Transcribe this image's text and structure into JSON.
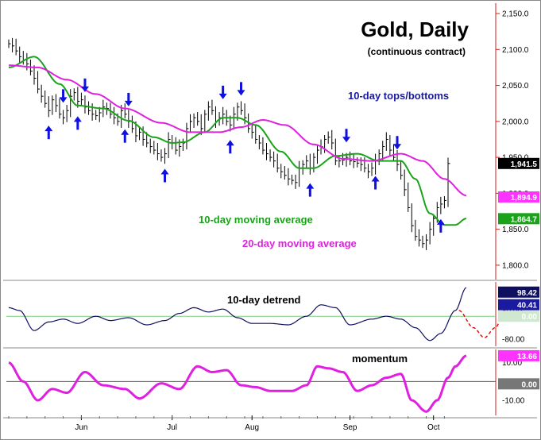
{
  "chart_data": [
    {
      "type": "line",
      "panel": "price",
      "title": "Gold, Daily",
      "subtitle": "(continuous contract)",
      "annotations": {
        "tops_bottoms": "10-day tops/bottoms",
        "ma10": "10-day moving average",
        "ma20": "20-day moving average"
      },
      "x_ticks": [
        "Jun",
        "Jul",
        "Aug",
        "Sep",
        "Oct"
      ],
      "x_tick_index": [
        20,
        45,
        67,
        94,
        117
      ],
      "y_ticks": [
        "2,150.0",
        "2,100.0",
        "2,050.0",
        "2,000.0",
        "1,950.0",
        "1,900.0",
        "1,850.0",
        "1,800.0"
      ],
      "y_tick_values": [
        2150,
        2100,
        2050,
        2000,
        1950,
        1900,
        1850,
        1800
      ],
      "ylim": [
        1780,
        2160
      ],
      "last_price": "1,941.5",
      "last_price_value": 1941.5,
      "ma20_label": "1,894.9",
      "ma20_value": 1894.9,
      "ma10_label": "1,864.7",
      "ma10_value": 1864.7,
      "closes": [
        2108,
        2105,
        2098,
        2090,
        2085,
        2080,
        2070,
        2060,
        2045,
        2035,
        2025,
        2015,
        2030,
        2022,
        2010,
        2005,
        2015,
        2035,
        2040,
        2028,
        2030,
        2020,
        2015,
        2010,
        2008,
        2012,
        2020,
        2018,
        2010,
        2005,
        2000,
        2015,
        2010,
        2000,
        1990,
        1980,
        1985,
        1975,
        1970,
        1965,
        1960,
        1955,
        1950,
        1955,
        1975,
        1970,
        1960,
        1965,
        1970,
        1990,
        2000,
        2005,
        2000,
        1990,
        2010,
        2020,
        2015,
        2000,
        2005,
        2010,
        2000,
        1995,
        2010,
        2020,
        2015,
        2005,
        1990,
        1985,
        1975,
        1970,
        1960,
        1955,
        1950,
        1945,
        1935,
        1930,
        1925,
        1920,
        1918,
        1915,
        1935,
        1940,
        1945,
        1935,
        1950,
        1960,
        1965,
        1975,
        1978,
        1970,
        1945,
        1945,
        1946,
        1950,
        1945,
        1944,
        1942,
        1940,
        1935,
        1930,
        1935,
        1945,
        1955,
        1965,
        1975,
        1960,
        1950,
        1940,
        1925,
        1905,
        1880,
        1855,
        1840,
        1835,
        1830,
        1835,
        1850,
        1865,
        1880,
        1885,
        1890,
        1941.5
      ],
      "series": [
        {
          "name": "10-day moving average",
          "color": "#1aa31a",
          "knots": [
            [
              0,
              2075
            ],
            [
              7,
              2090
            ],
            [
              14,
              2052
            ],
            [
              19,
              2022
            ],
            [
              26,
              2018
            ],
            [
              33,
              2001
            ],
            [
              40,
              1978
            ],
            [
              45,
              1970
            ],
            [
              48,
              1971
            ],
            [
              54,
              1985
            ],
            [
              59,
              2005
            ],
            [
              63,
              2005
            ],
            [
              68,
              1995
            ],
            [
              75,
              1958
            ],
            [
              80,
              1935
            ],
            [
              84,
              1935
            ],
            [
              90,
              1952
            ],
            [
              96,
              1955
            ],
            [
              102,
              1945
            ],
            [
              108,
              1945
            ],
            [
              112,
              1920
            ],
            [
              116,
              1872
            ],
            [
              120,
              1856
            ],
            [
              123,
              1856
            ],
            [
              126,
              1865
            ]
          ]
        },
        {
          "name": "20-day moving average",
          "color": "#e020e0",
          "knots": [
            [
              0,
              2078
            ],
            [
              8,
              2075
            ],
            [
              16,
              2058
            ],
            [
              24,
              2038
            ],
            [
              32,
              2018
            ],
            [
              42,
              1998
            ],
            [
              50,
              1985
            ],
            [
              58,
              1985
            ],
            [
              64,
              1992
            ],
            [
              70,
              2002
            ],
            [
              76,
              1995
            ],
            [
              84,
              1968
            ],
            [
              92,
              1948
            ],
            [
              100,
              1945
            ],
            [
              108,
              1955
            ],
            [
              114,
              1945
            ],
            [
              120,
              1920
            ],
            [
              126,
              1897
            ]
          ]
        }
      ],
      "tops": [
        15,
        21,
        33,
        59,
        64,
        93,
        107
      ],
      "bottoms": [
        11,
        19,
        32,
        43,
        61,
        83,
        101,
        119
      ]
    },
    {
      "type": "line",
      "panel": "detrend",
      "title": "10-day detrend",
      "y_ticks": [
        "20.00",
        "-80.00"
      ],
      "y_tick_values": [
        20,
        -80
      ],
      "ylim": [
        -105,
        120
      ],
      "zero_label": "0.00",
      "upper_label": "98.42",
      "upper_value": 98.42,
      "current_label": "40.41",
      "current_value": 40.41,
      "series": [
        {
          "name": "10-day detrend",
          "color": "#101060",
          "knots": [
            [
              0,
              30
            ],
            [
              3,
              20
            ],
            [
              7,
              -50
            ],
            [
              11,
              -20
            ],
            [
              15,
              -10
            ],
            [
              19,
              -25
            ],
            [
              24,
              0
            ],
            [
              28,
              -15
            ],
            [
              33,
              -5
            ],
            [
              38,
              -30
            ],
            [
              43,
              -15
            ],
            [
              47,
              10
            ],
            [
              51,
              30
            ],
            [
              55,
              15
            ],
            [
              59,
              25
            ],
            [
              63,
              -5
            ],
            [
              67,
              -25
            ],
            [
              72,
              -25
            ],
            [
              77,
              -30
            ],
            [
              82,
              0
            ],
            [
              86,
              40
            ],
            [
              90,
              30
            ],
            [
              94,
              -30
            ],
            [
              100,
              -10
            ],
            [
              104,
              0
            ],
            [
              108,
              -10
            ],
            [
              112,
              -40
            ],
            [
              116,
              -85
            ],
            [
              119,
              -60
            ],
            [
              123,
              20
            ],
            [
              126,
              100
            ]
          ]
        },
        {
          "name": "projection",
          "color": "#e00000",
          "dashed": true,
          "knots": [
            [
              124,
              20
            ],
            [
              128,
              -40
            ],
            [
              131,
              -75
            ],
            [
              134,
              -40
            ],
            [
              137,
              30
            ],
            [
              140,
              45
            ],
            [
              143,
              10
            ],
            [
              145,
              -20
            ]
          ]
        }
      ]
    },
    {
      "type": "line",
      "panel": "momentum",
      "title": "momentum",
      "y_ticks": [
        "10.00",
        "-10.00"
      ],
      "y_tick_values": [
        10,
        -10
      ],
      "ylim": [
        -18,
        17
      ],
      "zero_label": "0.00",
      "current_label": "13.66",
      "current_value": 13.66,
      "series": [
        {
          "name": "momentum",
          "color": "#e020e0",
          "knots": [
            [
              0,
              10
            ],
            [
              4,
              0
            ],
            [
              8,
              -10
            ],
            [
              12,
              -4
            ],
            [
              16,
              -6
            ],
            [
              21,
              5
            ],
            [
              26,
              -2
            ],
            [
              32,
              -4
            ],
            [
              36,
              -9
            ],
            [
              42,
              -1
            ],
            [
              47,
              -4
            ],
            [
              52,
              8
            ],
            [
              56,
              5
            ],
            [
              60,
              6
            ],
            [
              64,
              -2
            ],
            [
              68,
              -3
            ],
            [
              72,
              -5
            ],
            [
              78,
              -5
            ],
            [
              82,
              -2
            ],
            [
              85,
              8
            ],
            [
              88,
              7
            ],
            [
              92,
              5
            ],
            [
              96,
              -5
            ],
            [
              100,
              -2
            ],
            [
              104,
              2
            ],
            [
              108,
              4
            ],
            [
              111,
              -10
            ],
            [
              115,
              -16
            ],
            [
              118,
              -10
            ],
            [
              121,
              2
            ],
            [
              123,
              8
            ],
            [
              126,
              13.66
            ]
          ]
        }
      ]
    }
  ]
}
